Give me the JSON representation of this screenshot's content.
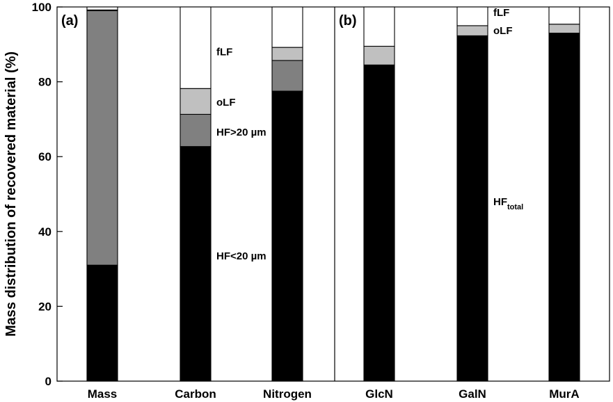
{
  "chart_data": {
    "type": "bar",
    "stacked": true,
    "ylabel": "Mass distribution of recovered material (%)",
    "ylim": [
      0,
      100
    ],
    "yticks": [
      0,
      20,
      40,
      60,
      80,
      100
    ],
    "grid": false,
    "colors": {
      "HF<20 µm": "#000000",
      "HF>20 µm": "#808080",
      "HF_total": "#000000",
      "oLF": "#c0c0c0",
      "fLF": "#ffffff"
    },
    "panels": [
      {
        "label": "(a)",
        "categories": [
          "Mass",
          "Carbon",
          "Nitrogen"
        ],
        "series": [
          {
            "name": "HF<20 µm",
            "values": [
              31,
              62.7,
              77.5
            ]
          },
          {
            "name": "HF>20 µm",
            "values": [
              68,
              8.6,
              8.2
            ]
          },
          {
            "name": "oLF",
            "values": [
              0.2,
              6.9,
              3.5
            ]
          },
          {
            "name": "fLF",
            "values": [
              0.8,
              21.8,
              10.8
            ]
          }
        ],
        "annotations": [
          {
            "text": "fLF",
            "category": "Carbon",
            "y": 88
          },
          {
            "text": "oLF",
            "category": "Carbon",
            "y": 74.5
          },
          {
            "text": "HF>20 µm",
            "category": "Carbon",
            "y": 66.5
          },
          {
            "text": "HF<20 µm",
            "category": "Carbon",
            "y": 33.5
          }
        ]
      },
      {
        "label": "(b)",
        "categories": [
          "GlcN",
          "GalN",
          "MurA"
        ],
        "series": [
          {
            "name": "HF_total",
            "values": [
              84.5,
              92.3,
              93
            ]
          },
          {
            "name": "oLF",
            "values": [
              5,
              2.7,
              2.4
            ]
          },
          {
            "name": "fLF",
            "values": [
              10.5,
              5,
              4.6
            ]
          }
        ],
        "annotations": [
          {
            "text": "fLF",
            "category": "GalN",
            "y": 98.5
          },
          {
            "text": "oLF",
            "category": "GalN",
            "y": 93.7
          },
          {
            "text": "HF",
            "subscript": "total",
            "category": "GalN",
            "y": 48
          }
        ]
      }
    ]
  }
}
